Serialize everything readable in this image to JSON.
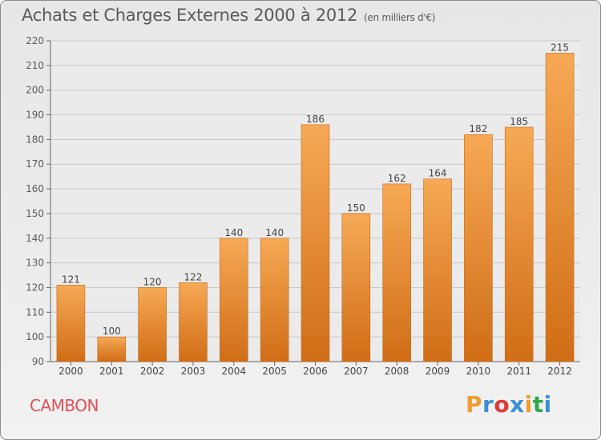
{
  "header": {
    "title": "Achats et Charges Externes 2000 à 2012",
    "subtitle": "(en milliers d'€)"
  },
  "footer": {
    "location": "CAMBON",
    "logo_text": "Proxiti",
    "logo_colors": [
      "#f29a2e",
      "#3b8fd8",
      "#e23a3a",
      "#3b8fd8",
      "#f29a2e",
      "#2faa4a",
      "#3b8fd8"
    ]
  },
  "colors": {
    "bar_light": "#f7a955",
    "bar_dark": "#d06d16",
    "grid": "#c8c8c8",
    "text": "#5a5a5a"
  },
  "chart_data": {
    "type": "bar",
    "title": "Achats et Charges Externes 2000 à 2012",
    "subtitle": "(en milliers d'€)",
    "xlabel": "",
    "ylabel": "",
    "categories": [
      "2000",
      "2001",
      "2002",
      "2003",
      "2004",
      "2005",
      "2006",
      "2007",
      "2008",
      "2009",
      "2010",
      "2011",
      "2012"
    ],
    "values": [
      121,
      100,
      120,
      122,
      140,
      140,
      186,
      150,
      162,
      164,
      182,
      185,
      215
    ],
    "ylim": [
      90,
      220
    ],
    "yticks": [
      90,
      100,
      110,
      120,
      130,
      140,
      150,
      160,
      170,
      180,
      190,
      200,
      210,
      220
    ],
    "grid": true,
    "legend": "none"
  }
}
